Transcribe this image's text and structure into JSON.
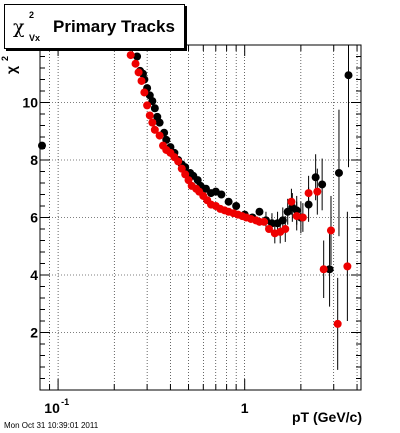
{
  "chart_data": {
    "type": "scatter",
    "title": {
      "chi": "χ",
      "sup": "2",
      "sub": "Vx",
      "text": "Primary Tracks"
    },
    "xlabel": "pT (GeV/c)",
    "ylabel": {
      "chi": "χ",
      "sup": "2"
    },
    "xscale": "log",
    "xlim": [
      0.08,
      4.2
    ],
    "ylim": [
      0,
      12
    ],
    "grid": true,
    "x_ticks": [
      {
        "value": 0.1,
        "base": "10",
        "exp": "-1"
      },
      {
        "value": 1,
        "label": "1"
      }
    ],
    "y_ticks": [
      2,
      4,
      6,
      8,
      10
    ],
    "series": [
      {
        "color": "#000000",
        "points": [
          {
            "x": 0.082,
            "y": 8.5
          },
          {
            "x": 0.25,
            "y": 12.0,
            "err": 0.3
          },
          {
            "x": 0.265,
            "y": 11.6
          },
          {
            "x": 0.275,
            "y": 11.1
          },
          {
            "x": 0.285,
            "y": 11.0
          },
          {
            "x": 0.29,
            "y": 10.8
          },
          {
            "x": 0.3,
            "y": 10.5
          },
          {
            "x": 0.31,
            "y": 10.25
          },
          {
            "x": 0.32,
            "y": 10.05
          },
          {
            "x": 0.33,
            "y": 9.8
          },
          {
            "x": 0.34,
            "y": 9.5
          },
          {
            "x": 0.35,
            "y": 9.3
          },
          {
            "x": 0.37,
            "y": 8.95
          },
          {
            "x": 0.38,
            "y": 8.7
          },
          {
            "x": 0.4,
            "y": 8.45
          },
          {
            "x": 0.42,
            "y": 8.25
          },
          {
            "x": 0.44,
            "y": 8.0
          },
          {
            "x": 0.46,
            "y": 7.85
          },
          {
            "x": 0.48,
            "y": 7.75
          },
          {
            "x": 0.51,
            "y": 7.55
          },
          {
            "x": 0.53,
            "y": 7.45
          },
          {
            "x": 0.56,
            "y": 7.3
          },
          {
            "x": 0.58,
            "y": 7.1
          },
          {
            "x": 0.62,
            "y": 7.0
          },
          {
            "x": 0.66,
            "y": 6.85
          },
          {
            "x": 0.7,
            "y": 6.9
          },
          {
            "x": 0.75,
            "y": 6.8
          },
          {
            "x": 0.82,
            "y": 6.55
          },
          {
            "x": 0.9,
            "y": 6.4
          },
          {
            "x": 1.0,
            "y": 6.1
          },
          {
            "x": 1.1,
            "y": 6.0
          },
          {
            "x": 1.2,
            "y": 6.2
          },
          {
            "x": 1.3,
            "y": 5.9,
            "err": 0.3
          },
          {
            "x": 1.4,
            "y": 5.8,
            "err": 0.35
          },
          {
            "x": 1.5,
            "y": 5.8,
            "err": 0.4
          },
          {
            "x": 1.6,
            "y": 5.9,
            "err": 0.45
          },
          {
            "x": 1.7,
            "y": 6.2,
            "err": 0.45
          },
          {
            "x": 1.8,
            "y": 6.35,
            "err": 0.5
          },
          {
            "x": 1.9,
            "y": 6.25,
            "err": 0.5
          },
          {
            "x": 2.0,
            "y": 6.0,
            "err": 0.55
          },
          {
            "x": 2.2,
            "y": 6.45,
            "err": 0.6
          },
          {
            "x": 2.4,
            "y": 7.4,
            "err": 0.8
          },
          {
            "x": 2.6,
            "y": 7.15,
            "err": 0.9
          },
          {
            "x": 2.85,
            "y": 4.2,
            "err": 1.3
          },
          {
            "x": 3.2,
            "y": 7.55,
            "err": 2.2
          },
          {
            "x": 3.6,
            "y": 10.95,
            "err": 3.2
          }
        ]
      },
      {
        "color": "#ee0000",
        "points": [
          {
            "x": 0.245,
            "y": 11.65
          },
          {
            "x": 0.26,
            "y": 11.35
          },
          {
            "x": 0.27,
            "y": 11.05
          },
          {
            "x": 0.28,
            "y": 10.75
          },
          {
            "x": 0.29,
            "y": 10.35
          },
          {
            "x": 0.3,
            "y": 9.9
          },
          {
            "x": 0.31,
            "y": 9.55
          },
          {
            "x": 0.32,
            "y": 9.3
          },
          {
            "x": 0.33,
            "y": 9.05
          },
          {
            "x": 0.35,
            "y": 8.85
          },
          {
            "x": 0.365,
            "y": 8.5
          },
          {
            "x": 0.38,
            "y": 8.35
          },
          {
            "x": 0.4,
            "y": 8.25
          },
          {
            "x": 0.42,
            "y": 8.1
          },
          {
            "x": 0.44,
            "y": 7.95
          },
          {
            "x": 0.46,
            "y": 7.7
          },
          {
            "x": 0.48,
            "y": 7.5
          },
          {
            "x": 0.5,
            "y": 7.3
          },
          {
            "x": 0.52,
            "y": 7.1
          },
          {
            "x": 0.55,
            "y": 7.0
          },
          {
            "x": 0.57,
            "y": 6.9
          },
          {
            "x": 0.6,
            "y": 6.75
          },
          {
            "x": 0.63,
            "y": 6.6
          },
          {
            "x": 0.66,
            "y": 6.45
          },
          {
            "x": 0.7,
            "y": 6.4
          },
          {
            "x": 0.74,
            "y": 6.3
          },
          {
            "x": 0.78,
            "y": 6.25
          },
          {
            "x": 0.82,
            "y": 6.2
          },
          {
            "x": 0.87,
            "y": 6.15
          },
          {
            "x": 0.92,
            "y": 6.1
          },
          {
            "x": 0.97,
            "y": 6.05
          },
          {
            "x": 1.02,
            "y": 6.0
          },
          {
            "x": 1.08,
            "y": 5.95
          },
          {
            "x": 1.15,
            "y": 5.9
          },
          {
            "x": 1.2,
            "y": 5.85
          },
          {
            "x": 1.27,
            "y": 5.85
          },
          {
            "x": 1.35,
            "y": 5.6
          },
          {
            "x": 1.45,
            "y": 5.45,
            "err": 0.35
          },
          {
            "x": 1.55,
            "y": 5.5,
            "err": 0.4
          },
          {
            "x": 1.65,
            "y": 5.6,
            "err": 0.45
          },
          {
            "x": 1.78,
            "y": 6.55,
            "err": 0.45
          },
          {
            "x": 1.9,
            "y": 6.05,
            "err": 0.5
          },
          {
            "x": 2.05,
            "y": 6.0,
            "err": 0.5
          },
          {
            "x": 2.2,
            "y": 6.85,
            "err": 0.6
          },
          {
            "x": 2.45,
            "y": 6.9,
            "err": 0.8
          },
          {
            "x": 2.65,
            "y": 4.2,
            "err": 1.0
          },
          {
            "x": 2.9,
            "y": 5.55,
            "err": 1.2
          },
          {
            "x": 3.15,
            "y": 2.3,
            "err": 1.6
          },
          {
            "x": 3.55,
            "y": 4.3,
            "err": 1.9
          }
        ]
      }
    ]
  },
  "timestamp": "Mon Oct 31 10:39:01 2011"
}
